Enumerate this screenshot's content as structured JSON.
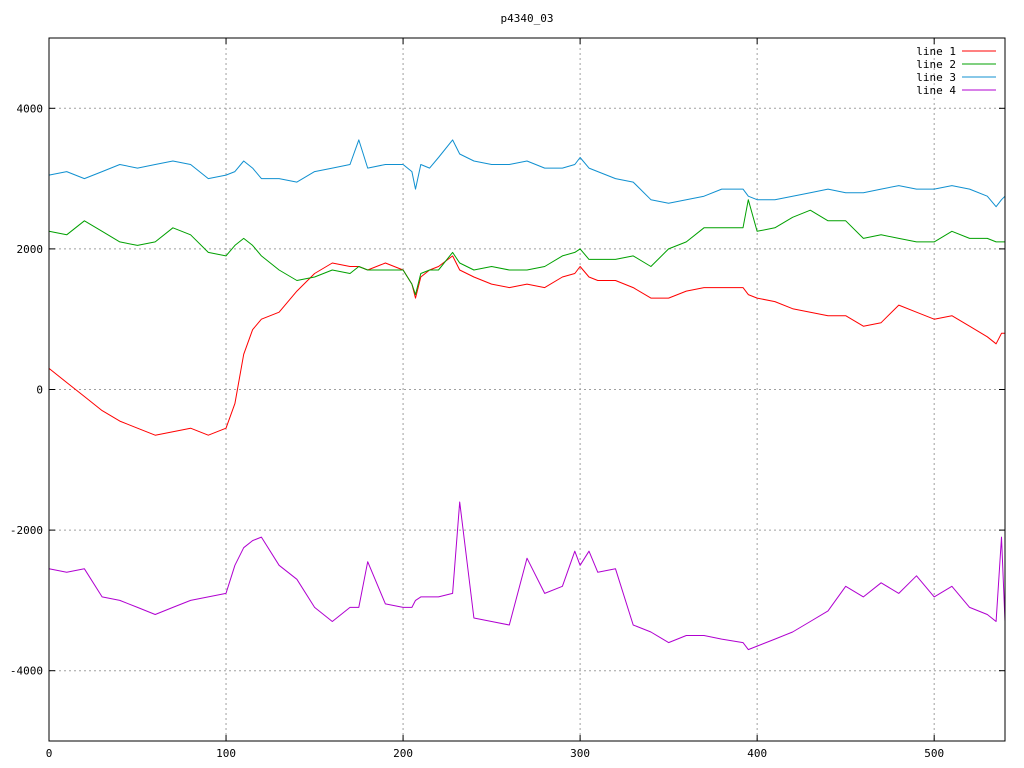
{
  "chart_data": {
    "type": "line",
    "title": "p4340_03",
    "xlabel": "",
    "ylabel": "",
    "xlim": [
      0,
      540
    ],
    "ylim": [
      -5000,
      5000
    ],
    "x_ticks": [
      0,
      100,
      200,
      300,
      400,
      500
    ],
    "y_ticks": [
      -4000,
      -2000,
      0,
      2000,
      4000
    ],
    "grid": true,
    "legend_position": "top-right",
    "x": [
      0,
      10,
      20,
      30,
      40,
      50,
      60,
      70,
      80,
      90,
      100,
      105,
      110,
      115,
      120,
      130,
      140,
      150,
      160,
      170,
      175,
      180,
      190,
      200,
      205,
      207,
      210,
      215,
      220,
      228,
      232,
      240,
      250,
      260,
      270,
      280,
      290,
      297,
      300,
      305,
      310,
      320,
      330,
      340,
      350,
      360,
      370,
      380,
      392,
      395,
      400,
      410,
      420,
      430,
      440,
      450,
      460,
      470,
      480,
      490,
      500,
      510,
      520,
      530,
      535,
      538,
      540
    ],
    "series": [
      {
        "name": "line 1",
        "color": "#ff0000",
        "values": [
          300,
          100,
          -100,
          -300,
          -450,
          -550,
          -650,
          -600,
          -550,
          -650,
          -550,
          -200,
          500,
          850,
          1000,
          1100,
          1400,
          1650,
          1800,
          1750,
          1750,
          1700,
          1800,
          1700,
          1500,
          1300,
          1600,
          1700,
          1750,
          1900,
          1700,
          1600,
          1500,
          1450,
          1500,
          1450,
          1600,
          1650,
          1750,
          1600,
          1550,
          1550,
          1450,
          1300,
          1300,
          1400,
          1450,
          1450,
          1450,
          1350,
          1300,
          1250,
          1150,
          1100,
          1050,
          1050,
          900,
          950,
          1200,
          1100,
          1000,
          1050,
          900,
          750,
          650,
          800,
          800
        ]
      },
      {
        "name": "line 2",
        "color": "#00a000",
        "values": [
          2250,
          2200,
          2400,
          2250,
          2100,
          2050,
          2100,
          2300,
          2200,
          1950,
          1900,
          2050,
          2150,
          2050,
          1900,
          1700,
          1550,
          1600,
          1700,
          1650,
          1750,
          1700,
          1700,
          1700,
          1500,
          1350,
          1650,
          1700,
          1700,
          1950,
          1800,
          1700,
          1750,
          1700,
          1700,
          1750,
          1900,
          1950,
          2000,
          1850,
          1850,
          1850,
          1900,
          1750,
          2000,
          2100,
          2300,
          2300,
          2300,
          2700,
          2250,
          2300,
          2450,
          2550,
          2400,
          2400,
          2150,
          2200,
          2150,
          2100,
          2100,
          2250,
          2150,
          2150,
          2100,
          2100,
          2100
        ]
      },
      {
        "name": "line 3",
        "color": "#1090d0",
        "values": [
          3050,
          3100,
          3000,
          3100,
          3200,
          3150,
          3200,
          3250,
          3200,
          3000,
          3050,
          3100,
          3250,
          3150,
          3000,
          3000,
          2950,
          3100,
          3150,
          3200,
          3550,
          3150,
          3200,
          3200,
          3100,
          2850,
          3200,
          3150,
          3300,
          3550,
          3350,
          3250,
          3200,
          3200,
          3250,
          3150,
          3150,
          3200,
          3300,
          3150,
          3100,
          3000,
          2950,
          2700,
          2650,
          2700,
          2750,
          2850,
          2850,
          2750,
          2700,
          2700,
          2750,
          2800,
          2850,
          2800,
          2800,
          2850,
          2900,
          2850,
          2850,
          2900,
          2850,
          2750,
          2600,
          2700,
          2750
        ]
      },
      {
        "name": "line 4",
        "color": "#b000d0",
        "values": [
          -2550,
          -2600,
          -2550,
          -2950,
          -3000,
          -3100,
          -3200,
          -3100,
          -3000,
          -2950,
          -2900,
          -2500,
          -2250,
          -2150,
          -2100,
          -2500,
          -2700,
          -3100,
          -3300,
          -3100,
          -3100,
          -2450,
          -3050,
          -3100,
          -3100,
          -3000,
          -2950,
          -2950,
          -2950,
          -2900,
          -1600,
          -3250,
          -3300,
          -3350,
          -2400,
          -2900,
          -2800,
          -2300,
          -2500,
          -2300,
          -2600,
          -2550,
          -3350,
          -3450,
          -3600,
          -3500,
          -3500,
          -3550,
          -3600,
          -3700,
          -3650,
          -3550,
          -3450,
          -3300,
          -3150,
          -2800,
          -2950,
          -2750,
          -2900,
          -2650,
          -2950,
          -2800,
          -3100,
          -3200,
          -3300,
          -2100,
          -3300
        ]
      }
    ]
  }
}
